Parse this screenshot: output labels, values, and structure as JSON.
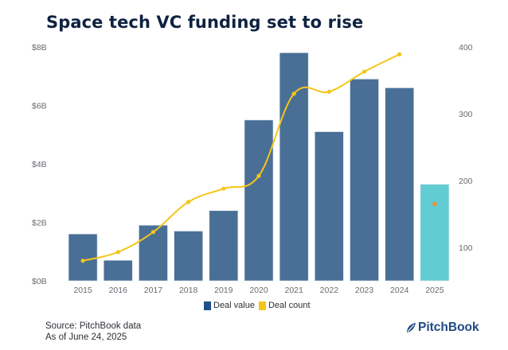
{
  "header": {
    "title": "Space tech VC funding set to rise"
  },
  "legend": {
    "items": [
      {
        "label": "Deal value",
        "color": "#1f4f8b"
      },
      {
        "label": "Deal count",
        "color": "#f5c518"
      }
    ]
  },
  "footer": {
    "source": "Source: PitchBook data",
    "asof": "As of June 24, 2025"
  },
  "brand": {
    "name": "PitchBook",
    "icon": "pitchbook-leaf-icon"
  },
  "colors": {
    "bar": "#4a6f96",
    "bar_highlight": "#62ccd3",
    "line": "#f5c518",
    "point_highlight": "#f0912c"
  },
  "chart_data": {
    "type": "bar",
    "title": "Space tech VC funding set to rise",
    "categories": [
      "2015",
      "2016",
      "2017",
      "2018",
      "2019",
      "2020",
      "2021",
      "2022",
      "2023",
      "2024",
      "2025"
    ],
    "series": [
      {
        "name": "Deal value",
        "type": "bar",
        "axis": "left",
        "unit": "$B",
        "values": [
          1.6,
          0.7,
          1.9,
          1.7,
          2.4,
          5.5,
          7.8,
          5.1,
          6.9,
          6.6,
          3.3
        ]
      },
      {
        "name": "Deal count",
        "type": "line",
        "axis": "right",
        "values": [
          80,
          93,
          123,
          168,
          188,
          207,
          330,
          333,
          363,
          389,
          165
        ]
      }
    ],
    "highlight_category": "2025",
    "y_left": {
      "ticks": [
        "$0B",
        "$2B",
        "$4B",
        "$6B",
        "$8B"
      ],
      "tick_values": [
        0,
        2,
        4,
        6,
        8
      ],
      "range": [
        0,
        8
      ]
    },
    "y_right": {
      "ticks": [
        "100",
        "200",
        "300",
        "400"
      ],
      "tick_values": [
        100,
        200,
        300,
        400
      ],
      "range": [
        50,
        400
      ]
    },
    "xlabel": "",
    "ylabel": "",
    "grid": false,
    "legend_position": "bottom-center"
  }
}
